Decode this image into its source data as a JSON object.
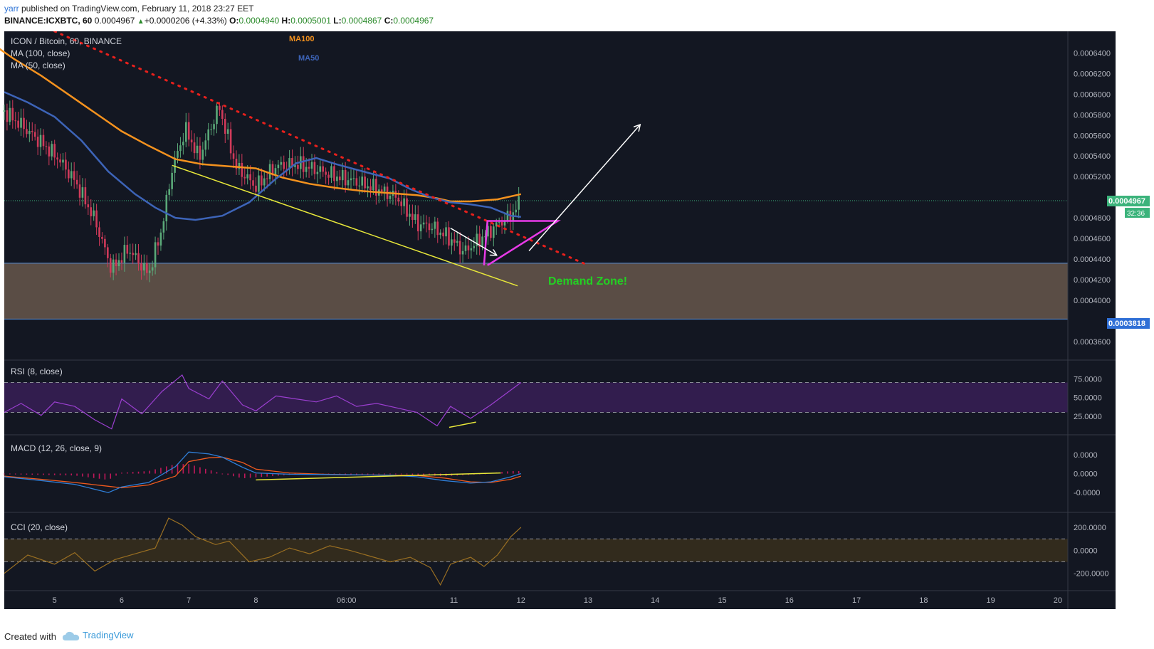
{
  "header": {
    "author": "yarr",
    "published": " published on TradingView.com, February 11, 2018 23:27 EET",
    "symbol": "BINANCE:ICXBTC, 60",
    "last": "0.0004967",
    "change_arrow": "▲",
    "change": "+0.0000206 (+4.33%)",
    "o_label": "O:",
    "o_value": "0.0004940",
    "h_label": "H:",
    "h_value": "0.0005001",
    "l_label": "L:",
    "l_value": "0.0004867",
    "c_label": "C:",
    "c_value": "0.0004967"
  },
  "legend": {
    "title": "ICON / Bitcoin, 60, BINANCE",
    "ma100": "MA (100, close)",
    "ma50": "MA (50, close)"
  },
  "annotations": {
    "ma100_label": "MA100",
    "ma50_label": "MA50",
    "demand_zone": "Demand Zone!"
  },
  "price_badges": {
    "current": "0.0004967",
    "countdown": "32:36",
    "zone_low": "0.0003818"
  },
  "footer": {
    "created_with": "Created with",
    "brand": "TradingView"
  },
  "colors": {
    "background": "#131722",
    "ma100": "#f5921e",
    "ma50": "#3d64b8",
    "trendline_dotted": "#e8201c",
    "yellow_lines": "#e8e83a",
    "triangle": "#e83ae8",
    "demand_zone": "#5a4d45",
    "demand_text": "#23d023",
    "up_candle": "#5aa878",
    "down_candle": "#d03a5a",
    "rsi": "#9b3fd0",
    "macd": "#2f7fd8",
    "signal": "#f05a1e",
    "cci": "#9a6f22"
  },
  "chart_data": [
    {
      "type": "candlestick",
      "panel": "price",
      "title": "ICON / Bitcoin, 60, BINANCE",
      "x_ticks": [
        "5",
        "6",
        "7",
        "8",
        "06:00",
        "11",
        "12",
        "13",
        "14",
        "15",
        "16",
        "17",
        "18",
        "19",
        "20"
      ],
      "y_ticks": [
        "0.0006400",
        "0.0006200",
        "0.0006000",
        "0.0005800",
        "0.0005600",
        "0.0005400",
        "0.0005200",
        "0.0004800",
        "0.0004600",
        "0.0004400",
        "0.0004200",
        "0.0004000",
        "0.0003600"
      ],
      "ylim": [
        0.000342,
        0.000661
      ],
      "x_range_days": [
        4.25,
        20.1
      ],
      "series": [
        {
          "name": "MA (100, close)",
          "x": [
            4.0,
            4.4,
            4.8,
            5.2,
            5.6,
            6.0,
            6.4,
            6.8,
            7.2,
            7.6,
            8.0,
            8.4,
            8.8,
            9.2,
            9.6,
            10.0,
            10.4,
            10.7,
            10.9,
            11.2,
            11.6,
            11.95
          ],
          "values": [
            0.000652,
            0.000634,
            0.000618,
            0.0006,
            0.000582,
            0.000564,
            0.00055,
            0.000537,
            0.000532,
            0.00053,
            0.000528,
            0.000519,
            0.000513,
            0.000509,
            0.000506,
            0.000504,
            0.000502,
            0.000499,
            0.000496,
            0.000496,
            0.000498,
            0.000503
          ]
        },
        {
          "name": "MA (50, close)",
          "x": [
            4.25,
            4.6,
            5.0,
            5.4,
            5.8,
            6.2,
            6.5,
            6.8,
            7.1,
            7.5,
            7.9,
            8.3,
            8.6,
            8.9,
            9.2,
            9.6,
            10.0,
            10.3,
            10.6,
            10.9,
            11.2,
            11.5,
            11.8,
            11.95
          ],
          "values": [
            0.000602,
            0.000592,
            0.000578,
            0.000555,
            0.000525,
            0.000503,
            0.00049,
            0.00048,
            0.000478,
            0.000482,
            0.000495,
            0.000518,
            0.000533,
            0.000538,
            0.000532,
            0.000525,
            0.000518,
            0.000508,
            0.0005,
            0.000495,
            0.000493,
            0.00049,
            0.000482,
            0.000481
          ]
        }
      ],
      "current_price": 0.0004967,
      "demand_zone": {
        "from": 0.0003818,
        "to": 0.000436
      },
      "dotted_trendline": {
        "x": [
          5.0,
          12.95
        ],
        "y": [
          0.000661,
          0.000434
        ]
      },
      "yellow_trendline": {
        "x": [
          6.75,
          11.9
        ],
        "y": [
          0.000531,
          0.000414
        ]
      },
      "triangle": {
        "x": [
          11.4,
          11.45,
          12.5,
          11.45
        ],
        "y": [
          0.000434,
          0.000477,
          0.000477,
          0.000434
        ]
      },
      "arrows": [
        {
          "x": [
            10.9,
            11.58
          ],
          "y": [
            0.00047,
            0.000444
          ],
          "color": "white"
        },
        {
          "x": [
            12.07,
            13.72
          ],
          "y": [
            0.000448,
            0.00057
          ],
          "color": "white"
        }
      ]
    },
    {
      "type": "line",
      "panel": "rsi",
      "title": "RSI (8, close)",
      "y_ticks": [
        "75.0000",
        "50.0000",
        "25.0000"
      ],
      "ylim": [
        0,
        100
      ],
      "band": [
        30,
        70
      ],
      "x": [
        4.25,
        4.5,
        4.8,
        5.0,
        5.3,
        5.6,
        5.85,
        6.0,
        6.3,
        6.6,
        6.9,
        7.0,
        7.3,
        7.5,
        7.8,
        8.0,
        8.3,
        8.6,
        8.9,
        9.2,
        9.5,
        9.8,
        10.1,
        10.4,
        10.7,
        10.9,
        11.2,
        11.5,
        11.8,
        11.95
      ],
      "values": [
        30,
        42,
        26,
        44,
        38,
        20,
        8,
        48,
        28,
        58,
        80,
        62,
        48,
        72,
        40,
        32,
        52,
        48,
        44,
        52,
        38,
        42,
        36,
        30,
        12,
        38,
        22,
        40,
        60,
        70
      ],
      "divergence_line": {
        "x": [
          10.88,
          11.28
        ],
        "y": [
          10,
          17
        ]
      }
    },
    {
      "type": "line",
      "panel": "macd",
      "title": "MACD (12, 26, close, 9)",
      "y_ticks": [
        "0.0000",
        "0.0000",
        "-0.0000"
      ],
      "ylim": [
        -1.0,
        1.0
      ],
      "x": [
        4.25,
        4.8,
        5.3,
        5.8,
        6.0,
        6.4,
        6.8,
        7.0,
        7.3,
        7.5,
        7.8,
        8.0,
        8.5,
        9.0,
        9.5,
        10.0,
        10.4,
        10.8,
        11.2,
        11.5,
        11.8,
        11.95
      ],
      "series": [
        {
          "name": "MACD",
          "values": [
            -0.1,
            -0.22,
            -0.34,
            -0.6,
            -0.42,
            -0.28,
            0.22,
            0.68,
            0.62,
            0.52,
            0.2,
            0.02,
            -0.02,
            -0.03,
            -0.04,
            -0.05,
            -0.1,
            -0.22,
            -0.3,
            -0.26,
            -0.1,
            0.0
          ]
        },
        {
          "name": "Signal",
          "values": [
            -0.08,
            -0.18,
            -0.28,
            -0.4,
            -0.45,
            -0.36,
            -0.08,
            0.38,
            0.5,
            0.52,
            0.35,
            0.14,
            0.02,
            -0.02,
            -0.04,
            -0.05,
            -0.06,
            -0.14,
            -0.26,
            -0.28,
            -0.18,
            -0.08
          ]
        }
      ],
      "divergence_line": {
        "x": [
          8.0,
          11.65
        ],
        "y": [
          -0.2,
          0.02
        ]
      }
    },
    {
      "type": "line",
      "panel": "cci",
      "title": "CCI (20, close)",
      "y_ticks": [
        "200.0000",
        "0.0000",
        "-200.0000"
      ],
      "ylim": [
        -350,
        330
      ],
      "band": [
        -100,
        100
      ],
      "x": [
        4.25,
        4.6,
        5.0,
        5.3,
        5.6,
        5.9,
        6.2,
        6.5,
        6.7,
        6.9,
        7.1,
        7.4,
        7.6,
        7.9,
        8.2,
        8.5,
        8.8,
        9.1,
        9.4,
        9.7,
        10.0,
        10.3,
        10.6,
        10.75,
        10.9,
        11.2,
        11.4,
        11.6,
        11.8,
        11.95
      ],
      "values": [
        -200,
        -40,
        -120,
        -20,
        -180,
        -80,
        -30,
        20,
        280,
        220,
        120,
        50,
        80,
        -100,
        -60,
        20,
        -30,
        40,
        0,
        -50,
        -100,
        -60,
        -150,
        -300,
        -120,
        -60,
        -140,
        -40,
        120,
        200
      ]
    }
  ]
}
